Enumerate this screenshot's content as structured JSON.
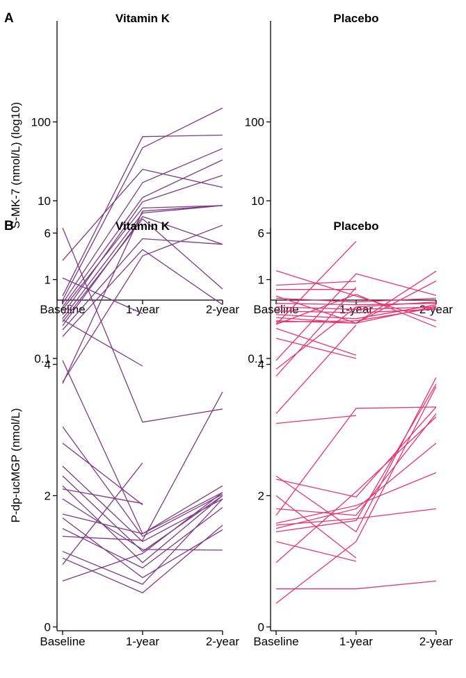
{
  "colors": {
    "vitamin_k": "#7b3a83",
    "placebo": "#e8336f"
  },
  "panels": {
    "A": {
      "letter": "A",
      "ylabel": "S-MK-7 (nmol/L) (log10)"
    },
    "B": {
      "letter": "B",
      "ylabel": "P-dp-ucMGP (nmol/L)"
    }
  },
  "chart_data": [
    {
      "type": "line",
      "panel": "A",
      "title": "Vitamin K",
      "scale": "log10",
      "categories": [
        "Baseline",
        "1-year",
        "2-year"
      ],
      "yticks": [
        0.1,
        1,
        10,
        100
      ],
      "ytick_labels": [
        "0.1",
        "1",
        "10",
        "100"
      ],
      "ylim": [
        0.04,
        180
      ],
      "color": "#7b3a83",
      "series": [
        {
          "values": [
            1.75,
            25,
            14.8
          ]
        },
        {
          "values": [
            1.05,
            0.37,
            null
          ]
        },
        {
          "values": [
            0.62,
            65,
            68
          ]
        },
        {
          "values": [
            0.55,
            47,
            150
          ]
        },
        {
          "values": [
            0.5,
            17,
            46
          ]
        },
        {
          "values": [
            0.45,
            11,
            33
          ]
        },
        {
          "values": [
            0.42,
            8.1,
            8.7
          ]
        },
        {
          "values": [
            0.36,
            9.7,
            21
          ]
        },
        {
          "values": [
            0.32,
            7,
            8.7
          ]
        },
        {
          "values": [
            0.29,
            5.9,
            0.76
          ]
        },
        {
          "values": [
            0.26,
            6.3,
            2.8
          ]
        },
        {
          "values": [
            0.23,
            3.3,
            2.8
          ]
        },
        {
          "values": [
            0.19,
            2.4,
            0.48
          ]
        },
        {
          "values": [
            0.31,
            0.08,
            null
          ]
        },
        {
          "values": [
            0.05,
            2,
            4.9
          ]
        },
        {
          "values": [
            0.048,
            7.4,
            8.7
          ]
        }
      ]
    },
    {
      "type": "line",
      "panel": "A",
      "title": "Placebo",
      "scale": "log10",
      "categories": [
        "Baseline",
        "1-year",
        "2-year"
      ],
      "yticks": [
        0.1,
        1,
        10,
        100
      ],
      "ytick_labels": [
        "0.1",
        "1",
        "10",
        "100"
      ],
      "ylim": [
        0.04,
        180
      ],
      "color": "#e8336f",
      "series": [
        {
          "values": [
            1.3,
            0.62,
            0.3
          ]
        },
        {
          "values": [
            0.85,
            0.95,
            null
          ]
        },
        {
          "values": [
            0.75,
            0.75,
            null
          ]
        },
        {
          "values": [
            0.62,
            0.28,
            1.28
          ]
        },
        {
          "values": [
            0.58,
            0.52,
            0.58
          ]
        },
        {
          "values": [
            0.5,
            0.48,
            0.5
          ]
        },
        {
          "values": [
            0.45,
            0.42,
            0.45
          ]
        },
        {
          "values": [
            0.4,
            0.38,
            0.42
          ]
        },
        {
          "values": [
            0.36,
            0.32,
            0.48
          ]
        },
        {
          "values": [
            0.33,
            0.28,
            0.96
          ]
        },
        {
          "values": [
            0.3,
            0.28,
            0.46
          ]
        },
        {
          "values": [
            0.27,
            0.65,
            0.25
          ]
        },
        {
          "values": [
            0.29,
            0.3,
            0.44
          ]
        },
        {
          "values": [
            0.24,
            0.11,
            null
          ]
        },
        {
          "values": [
            0.18,
            0.1,
            null
          ]
        },
        {
          "values": [
            0.27,
            3.05,
            null
          ]
        },
        {
          "values": [
            0.073,
            0.45,
            0.52
          ]
        }
      ]
    },
    {
      "type": "line",
      "panel": "B",
      "title": "Vitamin K",
      "scale": "linear",
      "categories": [
        "Baseline",
        "1-year",
        "2-year"
      ],
      "yticks": [
        0,
        2,
        4,
        6
      ],
      "ytick_labels": [
        "0",
        "2",
        "4",
        "6"
      ],
      "ylim": [
        -0.1,
        6.25
      ],
      "color": "#7b3a83",
      "series": [
        {
          "values": [
            6.08,
            3.12,
            3.32
          ]
        },
        {
          "values": [
            4.06,
            1.42,
            2.05
          ]
        },
        {
          "values": [
            3.05,
            1.38,
            2.02
          ]
        },
        {
          "values": [
            2.8,
            1.86,
            null
          ]
        },
        {
          "values": [
            2.45,
            1.3,
            1.95
          ]
        },
        {
          "values": [
            2.3,
            1.15,
            2.0
          ]
        },
        {
          "values": [
            2.15,
            0.98,
            2.0
          ]
        },
        {
          "values": [
            2.1,
            1.88,
            null
          ]
        },
        {
          "values": [
            1.95,
            1.18,
            1.17
          ]
        },
        {
          "values": [
            1.72,
            1.42,
            2.15
          ]
        },
        {
          "values": [
            1.66,
            0.75,
            1.48
          ]
        },
        {
          "values": [
            1.5,
            0.9,
            1.82
          ]
        },
        {
          "values": [
            1.38,
            1.32,
            3.58
          ]
        },
        {
          "values": [
            1.15,
            0.65,
            1.95
          ]
        },
        {
          "values": [
            1.05,
            0.52,
            1.55
          ]
        },
        {
          "values": [
            0.95,
            2.5,
            null
          ]
        },
        {
          "values": [
            0.7,
            1.12,
            2.05
          ]
        }
      ]
    },
    {
      "type": "line",
      "panel": "B",
      "title": "Placebo",
      "scale": "linear",
      "categories": [
        "Baseline",
        "1-year",
        "2-year"
      ],
      "yticks": [
        0,
        2,
        4,
        6
      ],
      "ytick_labels": [
        "0",
        "2",
        "4",
        "6"
      ],
      "ylim": [
        -0.1,
        6.25
      ],
      "color": "#e8336f",
      "series": [
        {
          "values": [
            4.06,
            5.38,
            5.05
          ]
        },
        {
          "values": [
            3.82,
            5.17,
            null
          ]
        },
        {
          "values": [
            3.25,
            4.6,
            null
          ]
        },
        {
          "values": [
            3.1,
            3.22,
            null
          ]
        },
        {
          "values": [
            2.3,
            1.45,
            3.8
          ]
        },
        {
          "values": [
            2.25,
            1.98,
            3.35
          ]
        },
        {
          "values": [
            2.0,
            1.05,
            null
          ]
        },
        {
          "values": [
            1.8,
            1.7,
            3.25
          ]
        },
        {
          "values": [
            1.7,
            3.33,
            3.35
          ]
        },
        {
          "values": [
            1.58,
            1.85,
            2.35
          ]
        },
        {
          "values": [
            1.55,
            1.65,
            1.8
          ]
        },
        {
          "values": [
            1.5,
            1.8,
            2.8
          ]
        },
        {
          "values": [
            1.45,
            1.62,
            3.7
          ]
        },
        {
          "values": [
            1.3,
            1.0,
            null
          ]
        },
        {
          "values": [
            0.98,
            2.06,
            3.2
          ]
        },
        {
          "values": [
            0.58,
            0.58,
            0.7
          ]
        },
        {
          "values": [
            0.36,
            1.3,
            3.66
          ]
        }
      ]
    }
  ]
}
